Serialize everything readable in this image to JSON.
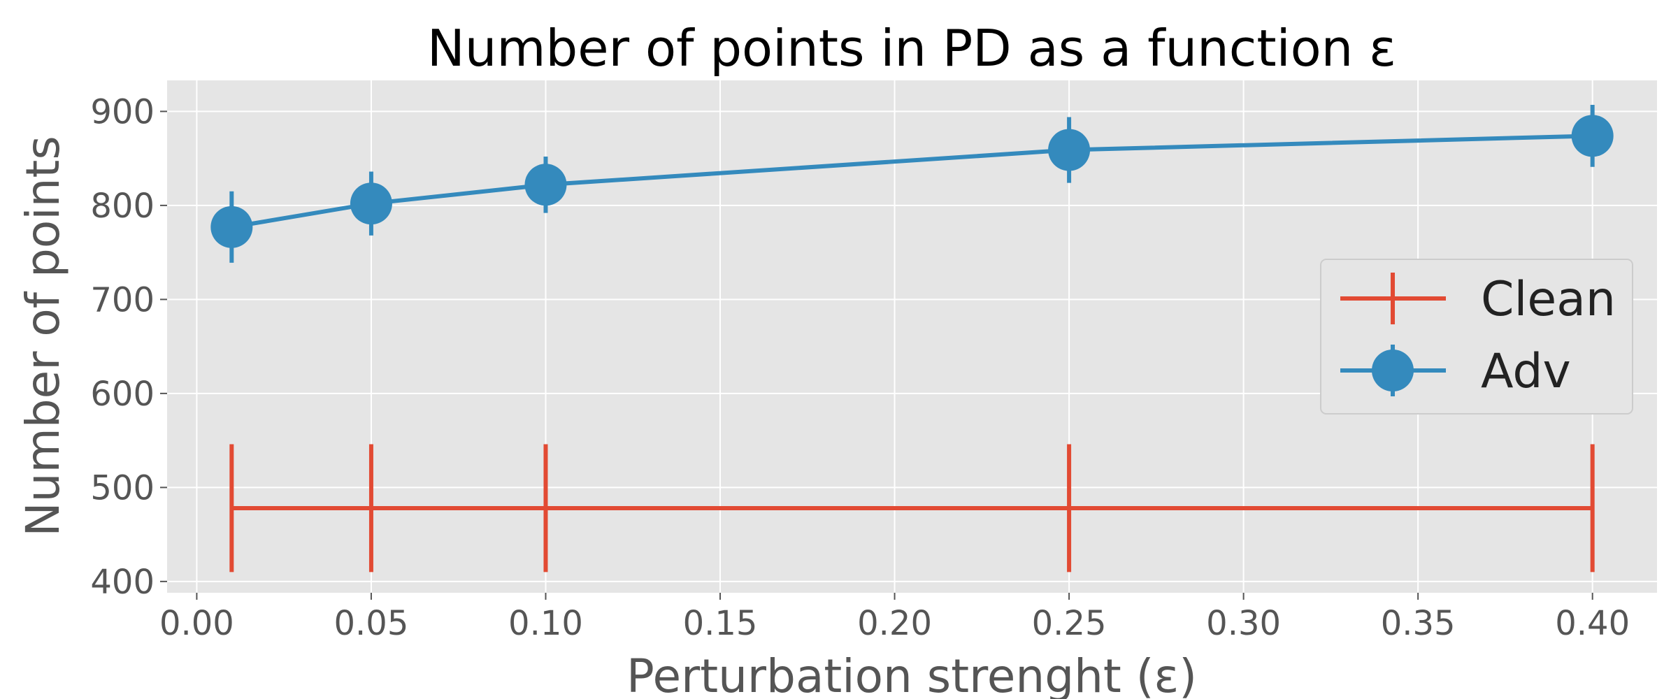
{
  "chart_data": {
    "type": "line",
    "title": "Number of points in PD as a function ε",
    "xlabel": "Perturbation strenght (ε)",
    "ylabel": "Number of points",
    "xlim": [
      -0.0085,
      0.4185
    ],
    "ylim": [
      388,
      933
    ],
    "x_ticks": [
      "0.00",
      "0.05",
      "0.10",
      "0.15",
      "0.20",
      "0.25",
      "0.30",
      "0.35",
      "0.40"
    ],
    "y_ticks": [
      "400",
      "500",
      "600",
      "700",
      "800",
      "900"
    ],
    "grid": true,
    "legend_position": "right",
    "x": [
      0.01,
      0.05,
      0.1,
      0.25,
      0.4
    ],
    "series": [
      {
        "name": "Clean",
        "color": "#E24A33",
        "marker": "none",
        "values": [
          478,
          478,
          478,
          478,
          478
        ],
        "err": [
          68,
          68,
          68,
          68,
          68
        ]
      },
      {
        "name": "Adv",
        "color": "#348ABD",
        "marker": "circle",
        "values": [
          777,
          802,
          822,
          859,
          874
        ],
        "err": [
          38,
          34,
          30,
          35,
          33
        ]
      }
    ]
  }
}
